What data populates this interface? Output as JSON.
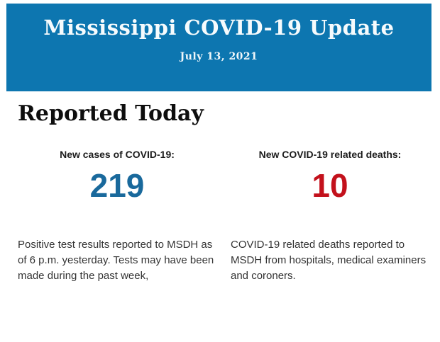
{
  "header": {
    "title": "Mississippi COVID-19 Update",
    "date": "July 13, 2021",
    "background_color": "#0d76b0",
    "text_color": "#ffffff"
  },
  "section": {
    "title": "Reported Today"
  },
  "stats": [
    {
      "label": "New cases of COVID-19:",
      "value": "219",
      "value_color": "#19699c",
      "description": "Positive test results reported to MSDH as of 6 p.m. yesterday. Tests may have been made during the past week,"
    },
    {
      "label": "New COVID-19 related deaths:",
      "value": "10",
      "value_color": "#c3111c",
      "description": "COVID-19 related deaths reported to MSDH from hospitals, medical examiners and coroners."
    }
  ]
}
